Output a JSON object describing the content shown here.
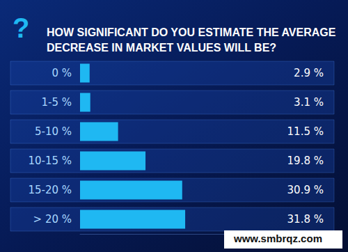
{
  "chart_data": {
    "type": "bar",
    "orientation": "horizontal",
    "title": "HOW SIGNIFICANT DO YOU ESTIMATE THE AVERAGE\nDECREASE IN MARKET VALUES WILL BE?",
    "categories": [
      "0 %",
      "1-5 %",
      "5-10 %",
      "10-15 %",
      "15-20 %",
      "> 20 %"
    ],
    "values": [
      2.9,
      3.1,
      11.5,
      19.8,
      30.9,
      31.8
    ],
    "value_labels": [
      "2.9 %",
      "3.1 %",
      "11.5 %",
      "19.8 %",
      "30.9 %",
      "31.8 %"
    ],
    "color": "#1fb8f2",
    "xlim": [
      0,
      60
    ],
    "grid": false,
    "data_labels": true,
    "tick_labels": "y",
    "annotations": [
      "?",
      "www.smbrqz.com"
    ]
  }
}
